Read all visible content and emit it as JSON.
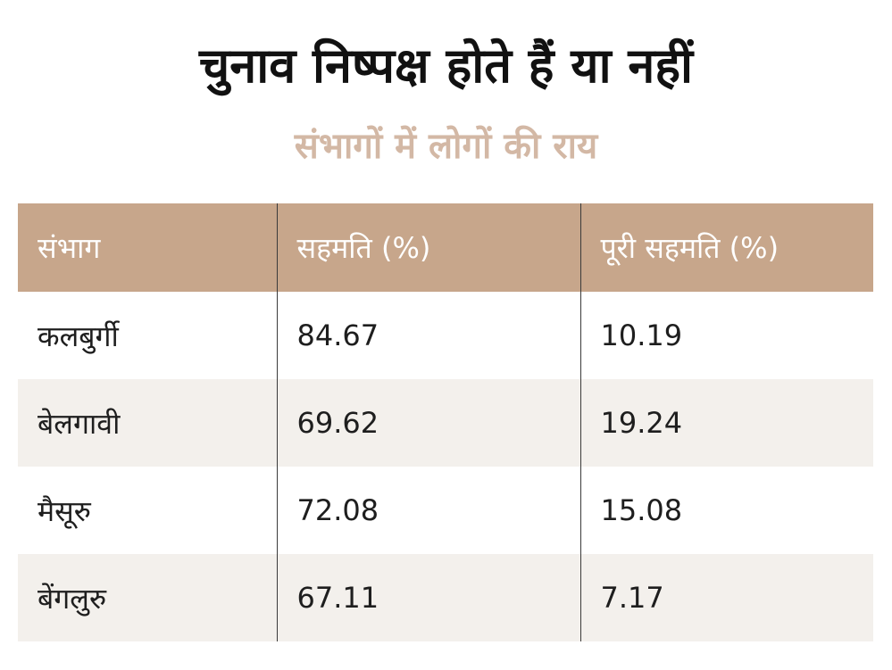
{
  "title": "चुनाव निष्पक्ष होते हैं या नहीं",
  "subtitle": "संभागों में लोगों की राय",
  "colors": {
    "header_bg": "#c7a68b",
    "subtitle": "#d3b8a5",
    "alt_row_bg": "#f3f0ec"
  },
  "chart_data": {
    "type": "table",
    "columns": [
      "संभाग",
      "सहमति (%)",
      "पूरी सहमति (%)"
    ],
    "rows": [
      [
        "कलबुर्गी",
        "84.67",
        "10.19"
      ],
      [
        "बेलगावी",
        "69.62",
        "19.24"
      ],
      [
        "मैसूरु",
        "72.08",
        "15.08"
      ],
      [
        "बेंगलुरु",
        "67.11",
        "7.17"
      ]
    ]
  }
}
